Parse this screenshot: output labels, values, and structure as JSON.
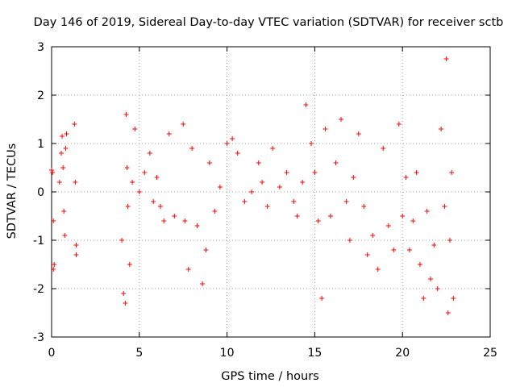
{
  "chart_data": {
    "type": "scatter",
    "title": "Day 146 of 2019, Sidereal Day-to-day VTEC variation (SDTVAR) for receiver sctb",
    "xlabel": "GPS time / hours",
    "ylabel": "SDTVAR / TECUs",
    "xlim": [
      0,
      25
    ],
    "ylim": [
      -3,
      3
    ],
    "xticks": [
      0,
      5,
      10,
      15,
      20,
      25
    ],
    "xtick_labels": [
      "0",
      "5",
      "10",
      "15",
      "20",
      "25"
    ],
    "yticks": [
      -3,
      -2,
      -1,
      0,
      1,
      2,
      3
    ],
    "ytick_labels": [
      "-3",
      "-2",
      "-1",
      "0",
      "1",
      "2",
      "3"
    ],
    "grid": true,
    "marker": "+",
    "series": [
      {
        "name": "SDTVAR",
        "color": "#ff0000",
        "segments": [
          [
            0.0,
            0.45
          ],
          [
            0.05,
            0.4
          ],
          [
            0.1,
            -0.6
          ],
          [
            0.1,
            -1.6
          ],
          [
            0.15,
            -1.5
          ],
          [
            0.45,
            0.2
          ],
          [
            0.55,
            0.8
          ],
          [
            0.6,
            1.15
          ],
          [
            0.65,
            0.5
          ],
          [
            0.7,
            -0.4
          ],
          [
            0.75,
            -0.9
          ],
          [
            0.8,
            0.9
          ],
          [
            0.85,
            1.2
          ],
          [
            1.3,
            1.4
          ],
          [
            1.35,
            0.2
          ],
          [
            1.4,
            -1.1
          ],
          [
            1.4,
            -1.3
          ],
          [
            4.0,
            -1.0
          ],
          [
            4.1,
            -2.1
          ],
          [
            4.2,
            -2.3
          ],
          [
            4.25,
            1.6
          ],
          [
            4.3,
            0.5
          ],
          [
            4.35,
            -0.3
          ],
          [
            4.45,
            -1.5
          ],
          [
            4.6,
            0.2
          ],
          [
            4.75,
            1.3
          ],
          [
            5.0,
            0.0
          ],
          [
            5.3,
            0.4
          ],
          [
            5.6,
            0.8
          ],
          [
            5.8,
            -0.2
          ],
          [
            6.0,
            0.3
          ],
          [
            6.2,
            -0.3
          ],
          [
            6.4,
            -0.6
          ],
          [
            6.7,
            1.2
          ],
          [
            7.0,
            -0.5
          ],
          [
            7.5,
            1.4
          ],
          [
            7.6,
            -0.6
          ],
          [
            7.8,
            -1.6
          ],
          [
            8.0,
            0.9
          ],
          [
            8.3,
            -0.7
          ],
          [
            8.6,
            -1.9
          ],
          [
            8.8,
            -1.2
          ],
          [
            9.0,
            0.6
          ],
          [
            9.3,
            -0.4
          ],
          [
            9.6,
            0.1
          ],
          [
            10.0,
            1.0
          ],
          [
            10.3,
            1.1
          ],
          [
            10.6,
            0.8
          ],
          [
            11.0,
            -0.2
          ],
          [
            11.4,
            0.0
          ],
          [
            11.8,
            0.6
          ],
          [
            12.0,
            0.2
          ],
          [
            12.3,
            -0.3
          ],
          [
            12.6,
            0.9
          ],
          [
            13.0,
            0.1
          ],
          [
            13.4,
            0.4
          ],
          [
            13.8,
            -0.2
          ],
          [
            14.0,
            -0.5
          ],
          [
            14.3,
            0.2
          ],
          [
            14.5,
            1.8
          ],
          [
            14.8,
            1.0
          ],
          [
            15.0,
            0.4
          ],
          [
            15.2,
            -0.6
          ],
          [
            15.4,
            -2.2
          ],
          [
            15.6,
            1.3
          ],
          [
            15.9,
            -0.5
          ],
          [
            16.2,
            0.6
          ],
          [
            16.5,
            1.5
          ],
          [
            16.8,
            -0.2
          ],
          [
            17.0,
            -1.0
          ],
          [
            17.2,
            0.3
          ],
          [
            17.5,
            1.2
          ],
          [
            17.8,
            -0.3
          ],
          [
            18.0,
            -1.3
          ],
          [
            18.3,
            -0.9
          ],
          [
            18.6,
            -1.6
          ],
          [
            18.9,
            0.9
          ],
          [
            19.2,
            -0.7
          ],
          [
            19.5,
            -1.2
          ],
          [
            19.8,
            1.4
          ],
          [
            20.0,
            -0.5
          ],
          [
            20.2,
            0.3
          ],
          [
            20.4,
            -1.2
          ],
          [
            20.6,
            -0.6
          ],
          [
            20.8,
            0.4
          ],
          [
            21.0,
            -1.5
          ],
          [
            21.2,
            -2.2
          ],
          [
            21.4,
            -0.4
          ],
          [
            21.6,
            -1.8
          ],
          [
            21.8,
            -1.1
          ],
          [
            22.0,
            -2.0
          ],
          [
            22.2,
            1.3
          ],
          [
            22.4,
            -0.3
          ],
          [
            22.5,
            2.75
          ],
          [
            22.6,
            -2.5
          ],
          [
            22.7,
            -1.0
          ],
          [
            22.8,
            0.4
          ],
          [
            22.9,
            -2.2
          ]
        ]
      }
    ]
  }
}
